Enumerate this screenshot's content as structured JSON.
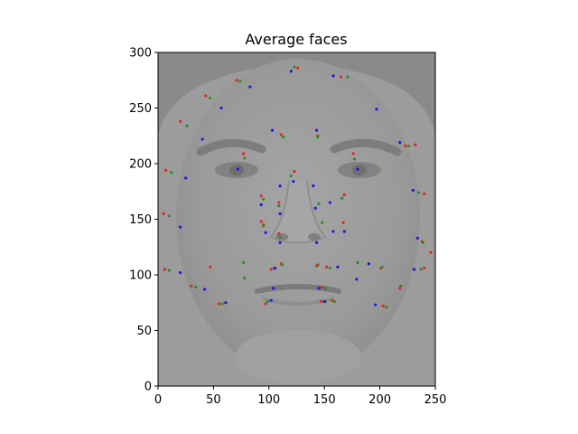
{
  "chart_data": {
    "type": "scatter",
    "title": "Average faces",
    "xlabel": "",
    "ylabel": "",
    "xlim": [
      0,
      250
    ],
    "ylim": [
      0,
      300
    ],
    "xticks": [
      0,
      50,
      100,
      150,
      200,
      250
    ],
    "yticks": [
      0,
      50,
      100,
      150,
      200,
      250,
      300
    ],
    "background_image": "average-face-grayscale",
    "grid": false,
    "series": [
      {
        "color": "#e6261c",
        "points": [
          [
            5,
            155
          ],
          [
            6,
            105
          ],
          [
            7,
            194
          ],
          [
            20,
            238
          ],
          [
            30,
            90
          ],
          [
            43,
            261
          ],
          [
            55,
            74
          ],
          [
            71,
            275
          ],
          [
            77,
            209
          ],
          [
            93,
            171
          ],
          [
            93,
            148
          ],
          [
            97,
            74
          ],
          [
            102,
            105
          ],
          [
            109,
            165
          ],
          [
            109,
            137
          ],
          [
            111,
            226
          ],
          [
            111,
            110
          ],
          [
            123,
            193
          ],
          [
            126,
            286
          ],
          [
            144,
            225
          ],
          [
            144,
            109
          ],
          [
            147,
            76
          ],
          [
            148,
            89
          ],
          [
            152,
            107
          ],
          [
            157,
            77
          ],
          [
            165,
            278
          ],
          [
            168,
            172
          ],
          [
            176,
            209
          ],
          [
            201,
            106
          ],
          [
            203,
            72
          ],
          [
            218,
            88
          ],
          [
            223,
            216
          ],
          [
            232,
            217
          ],
          [
            238,
            130
          ],
          [
            240,
            106
          ],
          [
            240,
            173
          ],
          [
            246,
            120
          ],
          [
            47,
            107
          ],
          [
            95,
            145
          ],
          [
            167,
            147
          ]
        ]
      },
      {
        "color": "#2e8b2e",
        "points": [
          [
            10,
            104
          ],
          [
            10,
            153
          ],
          [
            12,
            192
          ],
          [
            26,
            234
          ],
          [
            34,
            89
          ],
          [
            47,
            259
          ],
          [
            58,
            74
          ],
          [
            74,
            274
          ],
          [
            78,
            205
          ],
          [
            95,
            168
          ],
          [
            95,
            144
          ],
          [
            99,
            76
          ],
          [
            106,
            106
          ],
          [
            109,
            162
          ],
          [
            110,
            134
          ],
          [
            113,
            224
          ],
          [
            112,
            109
          ],
          [
            120,
            189
          ],
          [
            123,
            287
          ],
          [
            144,
            224
          ],
          [
            143,
            108
          ],
          [
            151,
            76
          ],
          [
            151,
            88
          ],
          [
            155,
            106
          ],
          [
            159,
            76
          ],
          [
            171,
            278
          ],
          [
            166,
            169
          ],
          [
            177,
            204
          ],
          [
            202,
            107
          ],
          [
            206,
            71
          ],
          [
            219,
            90
          ],
          [
            226,
            216
          ],
          [
            235,
            174
          ],
          [
            239,
            129
          ],
          [
            237,
            105
          ],
          [
            145,
            164
          ],
          [
            148,
            147
          ],
          [
            77,
            111
          ],
          [
            78,
            97
          ],
          [
            180,
            111
          ]
        ]
      },
      {
        "color": "#1a1ae6",
        "points": [
          [
            20,
            102
          ],
          [
            20,
            143
          ],
          [
            25,
            187
          ],
          [
            40,
            222
          ],
          [
            42,
            87
          ],
          [
            57,
            250
          ],
          [
            61,
            75
          ],
          [
            72,
            195
          ],
          [
            83,
            269
          ],
          [
            93,
            163
          ],
          [
            97,
            138
          ],
          [
            102,
            77
          ],
          [
            104,
            88
          ],
          [
            105,
            106
          ],
          [
            110,
            129
          ],
          [
            110,
            180
          ],
          [
            103,
            230
          ],
          [
            120,
            283
          ],
          [
            122,
            184
          ],
          [
            140,
            180
          ],
          [
            142,
            160
          ],
          [
            143,
            129
          ],
          [
            143,
            230
          ],
          [
            145,
            88
          ],
          [
            150,
            76
          ],
          [
            158,
            139
          ],
          [
            158,
            279
          ],
          [
            162,
            107
          ],
          [
            168,
            139
          ],
          [
            179,
            96
          ],
          [
            180,
            195
          ],
          [
            196,
            73
          ],
          [
            197,
            249
          ],
          [
            218,
            219
          ],
          [
            230,
            176
          ],
          [
            231,
            105
          ],
          [
            234,
            133
          ],
          [
            190,
            110
          ],
          [
            110,
            155
          ],
          [
            155,
            165
          ]
        ]
      }
    ]
  }
}
